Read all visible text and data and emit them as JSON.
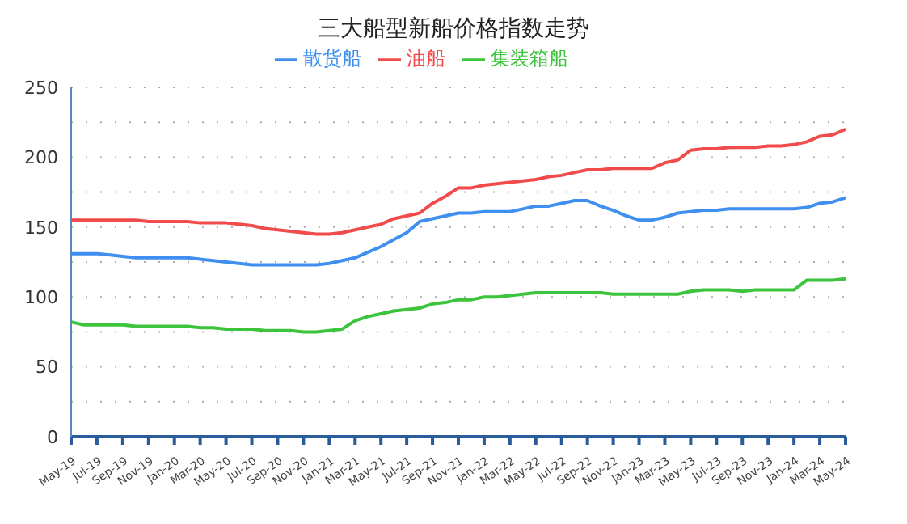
{
  "chart_data": {
    "type": "line",
    "title": "三大船型新船价格指数走势",
    "categories": [
      "May-19",
      null,
      "Jul-19",
      null,
      "Sep-19",
      null,
      "Nov-19",
      null,
      "Jan-20",
      null,
      "Mar-20",
      null,
      "May-20",
      null,
      "Jul-20",
      null,
      "Sep-20",
      null,
      "Nov-20",
      null,
      "Jan-21",
      null,
      "Mar-21",
      null,
      "May-21",
      null,
      "Jul-21",
      null,
      "Sep-21",
      null,
      "Nov-21",
      null,
      "Jan-22",
      null,
      "Mar-22",
      null,
      "May-22",
      null,
      "Jul-22",
      null,
      "Sep-22",
      null,
      "Nov-22",
      null,
      "Jan-23",
      null,
      "Mar-23",
      null,
      "May-23",
      null,
      "Jul-23",
      null,
      "Sep-23",
      null,
      "Nov-23",
      null,
      "Jan-24",
      null,
      "Mar-24",
      null,
      "May-24"
    ],
    "series": [
      {
        "name": "散货船",
        "color": "#3f8ff0",
        "values": [
          131,
          131,
          131,
          130,
          129,
          128,
          128,
          128,
          128,
          128,
          127,
          126,
          125,
          124,
          123,
          123,
          123,
          123,
          123,
          123,
          124,
          126,
          128,
          132,
          136,
          141,
          146,
          154,
          156,
          158,
          160,
          160,
          161,
          161,
          161,
          163,
          165,
          165,
          167,
          169,
          169,
          165,
          162,
          158,
          155,
          155,
          157,
          160,
          161,
          162,
          162,
          163,
          163,
          163,
          163,
          163,
          163,
          164,
          167,
          168,
          171
        ]
      },
      {
        "name": "油船",
        "color": "#f24b4b",
        "values": [
          155,
          155,
          155,
          155,
          155,
          155,
          154,
          154,
          154,
          154,
          153,
          153,
          153,
          152,
          151,
          149,
          148,
          147,
          146,
          145,
          145,
          146,
          148,
          150,
          152,
          156,
          158,
          160,
          167,
          172,
          178,
          178,
          180,
          181,
          182,
          183,
          184,
          186,
          187,
          189,
          191,
          191,
          192,
          192,
          192,
          192,
          196,
          198,
          205,
          206,
          206,
          207,
          207,
          207,
          208,
          208,
          209,
          211,
          215,
          216,
          220
        ]
      },
      {
        "name": "集装箱船",
        "color": "#3cc43c",
        "values": [
          82,
          80,
          80,
          80,
          80,
          79,
          79,
          79,
          79,
          79,
          78,
          78,
          77,
          77,
          77,
          76,
          76,
          76,
          75,
          75,
          76,
          77,
          83,
          86,
          88,
          90,
          91,
          92,
          95,
          96,
          98,
          98,
          100,
          100,
          101,
          102,
          103,
          103,
          103,
          103,
          103,
          103,
          102,
          102,
          102,
          102,
          102,
          102,
          104,
          105,
          105,
          105,
          104,
          105,
          105,
          105,
          105,
          112,
          112,
          112,
          113
        ]
      }
    ],
    "ylim": [
      0,
      250
    ],
    "yticks": [
      0,
      {
        "value": 25,
        "label": null
      },
      50,
      {
        "value": 75,
        "label": null
      },
      100,
      {
        "value": 125,
        "label": null
      },
      150,
      {
        "value": 175,
        "label": null
      },
      200,
      {
        "value": 225,
        "label": null
      },
      250
    ],
    "grid": "y",
    "legend": "top",
    "marker": "none",
    "line_style": "solid"
  }
}
